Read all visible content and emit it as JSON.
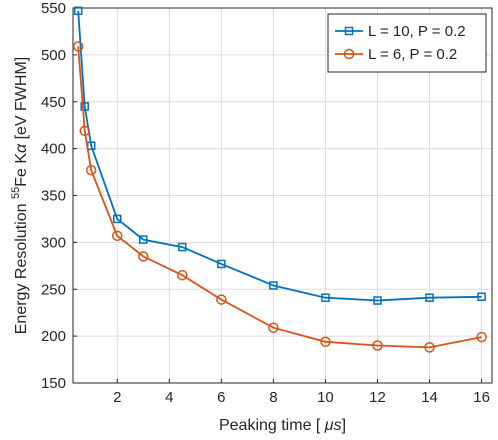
{
  "chart_data": {
    "type": "line",
    "xlabel_prefix": "Peaking time [ ",
    "xlabel_unit": "μs",
    "xlabel_suffix": "]",
    "ylabel_prefix": "Energy Resolution ",
    "ylabel_sup": "55",
    "ylabel_rest": "Fe K",
    "ylabel_alpha": "α",
    "ylabel_unit": " [eV FWHM]",
    "xlim": [
      0.3,
      16.4
    ],
    "ylim": [
      150,
      550
    ],
    "xticks": [
      2,
      4,
      6,
      8,
      10,
      12,
      14,
      16
    ],
    "yticks": [
      150,
      200,
      250,
      300,
      350,
      400,
      450,
      500,
      550
    ],
    "grid": true,
    "legend_position": "top-right",
    "series": [
      {
        "name": "L = 10, P = 0.2",
        "color": "#0072BD",
        "marker": "square",
        "x": [
          0.5,
          0.75,
          1.0,
          2.0,
          3.0,
          4.5,
          6.0,
          8.0,
          10.0,
          12.0,
          14.0,
          16.0
        ],
        "y": [
          547,
          445,
          403,
          325,
          303,
          295,
          277,
          254,
          241,
          238,
          241,
          242
        ]
      },
      {
        "name": "L = 6,   P = 0.2",
        "color": "#D95319",
        "marker": "circle",
        "x": [
          0.5,
          0.75,
          1.0,
          2.0,
          3.0,
          4.5,
          6.0,
          8.0,
          10.0,
          12.0,
          14.0,
          16.0
        ],
        "y": [
          509,
          419,
          377,
          307,
          285,
          265,
          239,
          209,
          194,
          190,
          188,
          199
        ]
      }
    ]
  }
}
